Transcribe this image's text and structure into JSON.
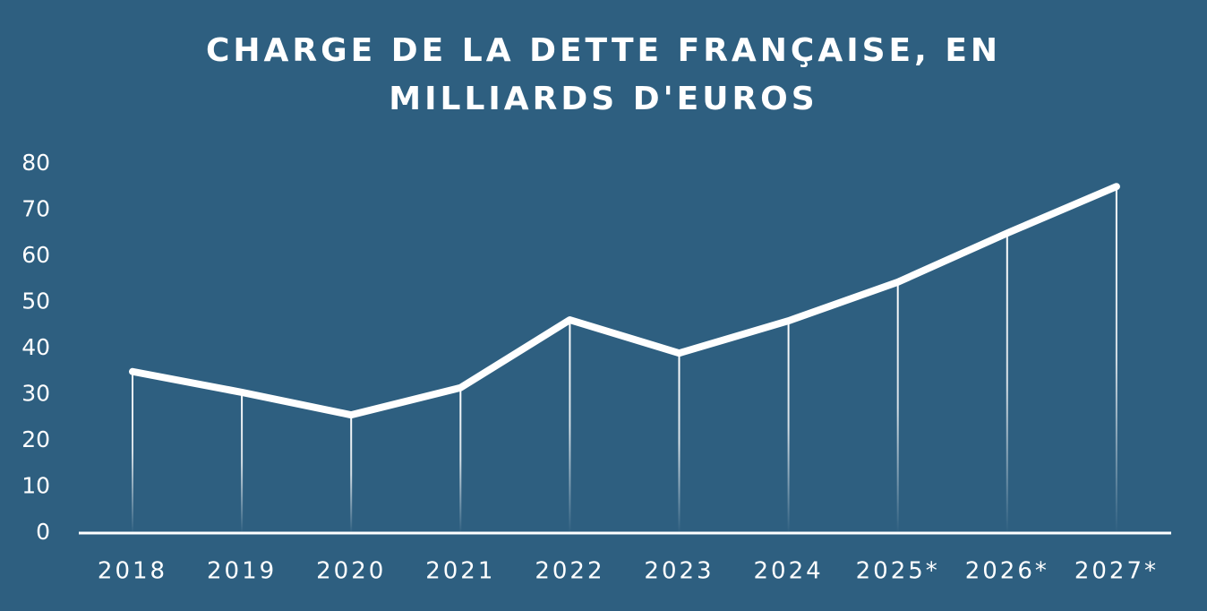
{
  "chart_data": {
    "type": "line",
    "title": "CHARGE DE LA DETTE FRANÇAISE, EN MILLIARDS D'EUROS",
    "categories": [
      "2018",
      "2019",
      "2020",
      "2021",
      "2022",
      "2023",
      "2024",
      "2025*",
      "2026*",
      "2027*"
    ],
    "values": [
      35,
      30.5,
      25.6,
      31.5,
      46.2,
      39,
      46,
      54.4,
      65,
      75.1
    ],
    "color": "#ffffff",
    "ylim": [
      0,
      80
    ],
    "yticks": [
      0,
      10,
      20,
      30,
      40,
      50,
      60,
      70,
      80
    ],
    "grid": false
  }
}
